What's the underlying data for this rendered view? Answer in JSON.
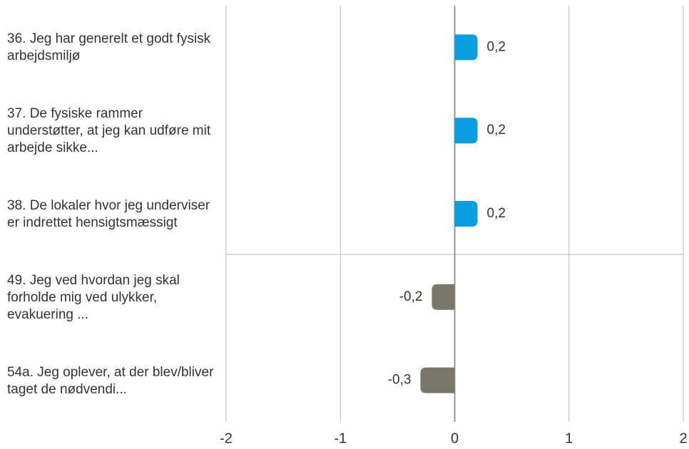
{
  "chart_data": {
    "type": "bar",
    "orientation": "horizontal",
    "categories": [
      "36. Jeg har generelt et godt fysisk arbejdsmiljø",
      "37. De fysiske rammer understøtter, at jeg kan udføre mit arbejde sikke...",
      "38. De lokaler hvor jeg underviser er indrettet hensigtsmæssigt",
      "49. Jeg ved hvordan jeg skal forholde mig ved ulykker, evakuering ...",
      "54a. Jeg oplever, at der blev/bliver taget de nødvendi..."
    ],
    "values": [
      0.2,
      0.2,
      0.2,
      -0.2,
      -0.3
    ],
    "value_labels": [
      "0,2",
      "0,2",
      "0,2",
      "-0,2",
      "-0,3"
    ],
    "colors": [
      "#0a9ee0",
      "#0a9ee0",
      "#0a9ee0",
      "#77776a",
      "#77776a"
    ],
    "xlim": [
      -2,
      2
    ],
    "xticks": [
      -2,
      -1,
      0,
      1,
      2
    ],
    "grid": true
  }
}
